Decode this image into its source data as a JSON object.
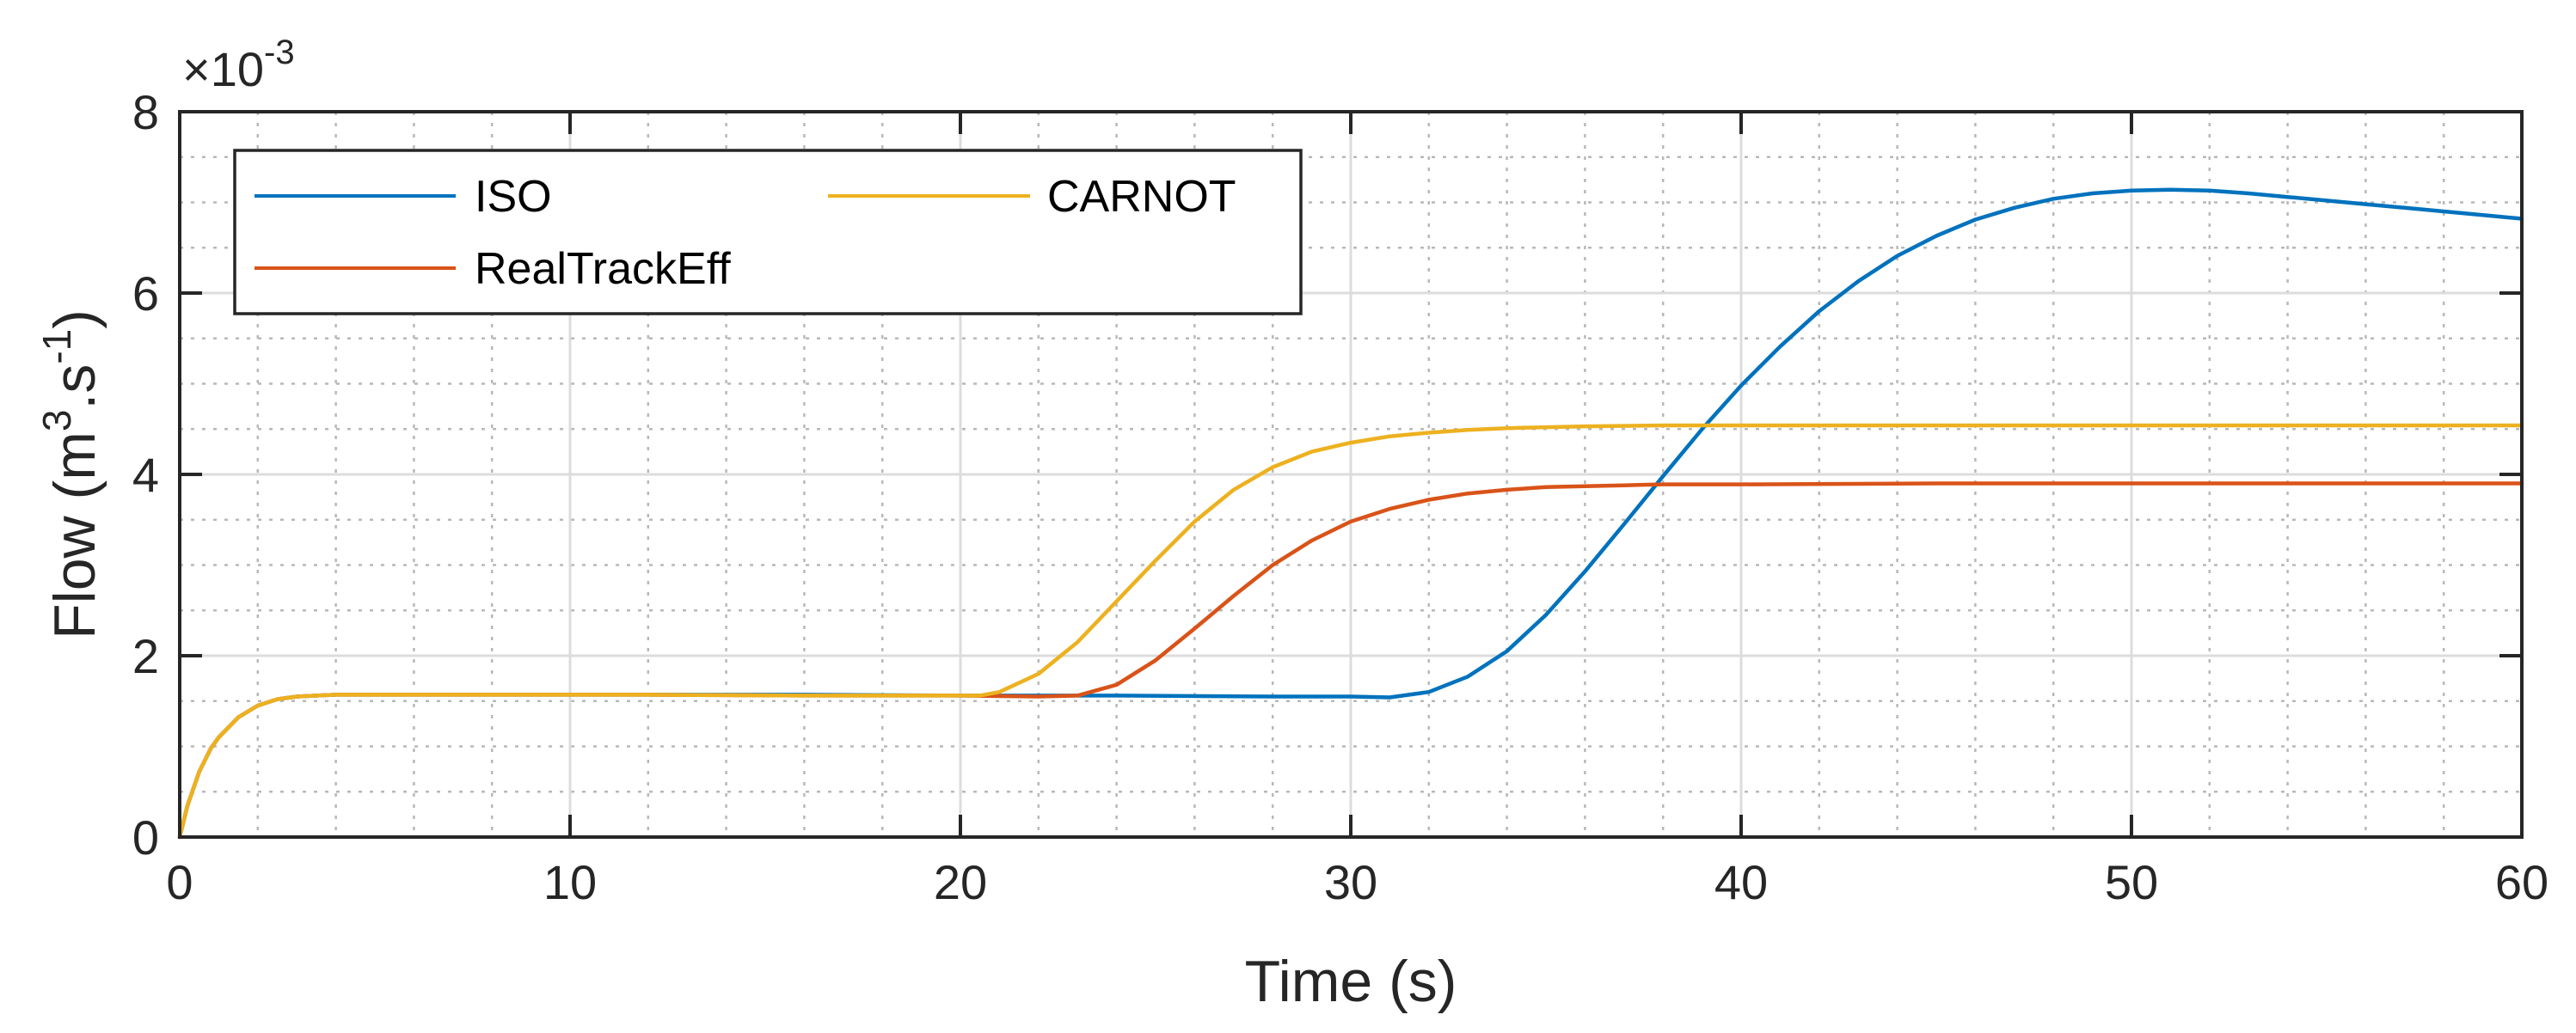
{
  "chart_data": {
    "type": "line",
    "title": "",
    "xlabel": "Time (s)",
    "ylabel_parts": [
      "Flow (m",
      "3",
      ".s",
      "-1",
      ")"
    ],
    "y_exponent_parts": [
      "×10",
      "-3"
    ],
    "xlim": [
      0,
      60
    ],
    "ylim": [
      0,
      8
    ],
    "xticks": [
      0,
      10,
      20,
      30,
      40,
      50,
      60
    ],
    "yticks": [
      0,
      2,
      4,
      6,
      8
    ],
    "x_minor_step": 2,
    "y_minor_step": 0.5,
    "grid": true,
    "legend_position": "top-left",
    "series": [
      {
        "name": "ISO",
        "color": "#0072BD",
        "x": [
          0,
          0.2,
          0.5,
          0.8,
          1,
          1.5,
          2,
          2.5,
          3,
          4,
          5,
          8,
          12,
          16,
          20,
          24,
          28,
          30,
          31,
          32,
          33,
          34,
          35,
          36,
          37,
          38,
          39,
          40,
          41,
          42,
          43,
          44,
          45,
          46,
          47,
          48,
          49,
          50,
          51,
          52,
          53,
          54,
          55,
          56,
          57,
          58,
          59,
          60
        ],
        "values": [
          0,
          0.35,
          0.72,
          0.98,
          1.1,
          1.32,
          1.45,
          1.52,
          1.55,
          1.57,
          1.57,
          1.57,
          1.57,
          1.57,
          1.56,
          1.56,
          1.55,
          1.55,
          1.54,
          1.6,
          1.77,
          2.05,
          2.45,
          2.93,
          3.45,
          3.98,
          4.5,
          4.98,
          5.41,
          5.8,
          6.13,
          6.41,
          6.63,
          6.81,
          6.94,
          7.04,
          7.1,
          7.13,
          7.14,
          7.13,
          7.1,
          7.06,
          7.02,
          6.98,
          6.94,
          6.9,
          6.86,
          6.82
        ]
      },
      {
        "name": "RealTrackEff",
        "color": "#D95319",
        "x": [
          0,
          0.2,
          0.5,
          0.8,
          1,
          1.5,
          2,
          2.5,
          3,
          4,
          5,
          8,
          12,
          16,
          20,
          22,
          23,
          24,
          25,
          26,
          27,
          28,
          29,
          30,
          31,
          32,
          33,
          34,
          35,
          36,
          37,
          38,
          40,
          45,
          50,
          55,
          60
        ],
        "values": [
          0,
          0.35,
          0.72,
          0.98,
          1.1,
          1.32,
          1.45,
          1.52,
          1.55,
          1.57,
          1.57,
          1.57,
          1.57,
          1.56,
          1.56,
          1.55,
          1.56,
          1.68,
          1.95,
          2.3,
          2.66,
          3.0,
          3.27,
          3.48,
          3.62,
          3.72,
          3.79,
          3.83,
          3.86,
          3.87,
          3.88,
          3.89,
          3.89,
          3.9,
          3.9,
          3.9,
          3.9
        ]
      },
      {
        "name": "CARNOT",
        "color": "#EDB120",
        "x": [
          0,
          0.2,
          0.5,
          0.8,
          1,
          1.5,
          2,
          2.5,
          3,
          4,
          5,
          8,
          12,
          16,
          20,
          20.5,
          21,
          22,
          23,
          24,
          25,
          26,
          27,
          28,
          29,
          30,
          31,
          32,
          33,
          34,
          35,
          36,
          38,
          40,
          45,
          50,
          55,
          60
        ],
        "values": [
          0,
          0.35,
          0.72,
          0.98,
          1.1,
          1.32,
          1.45,
          1.52,
          1.55,
          1.57,
          1.57,
          1.57,
          1.57,
          1.56,
          1.56,
          1.56,
          1.6,
          1.8,
          2.15,
          2.6,
          3.05,
          3.48,
          3.83,
          4.08,
          4.25,
          4.35,
          4.42,
          4.46,
          4.49,
          4.51,
          4.52,
          4.53,
          4.54,
          4.54,
          4.54,
          4.54,
          4.54,
          4.54
        ]
      }
    ]
  }
}
